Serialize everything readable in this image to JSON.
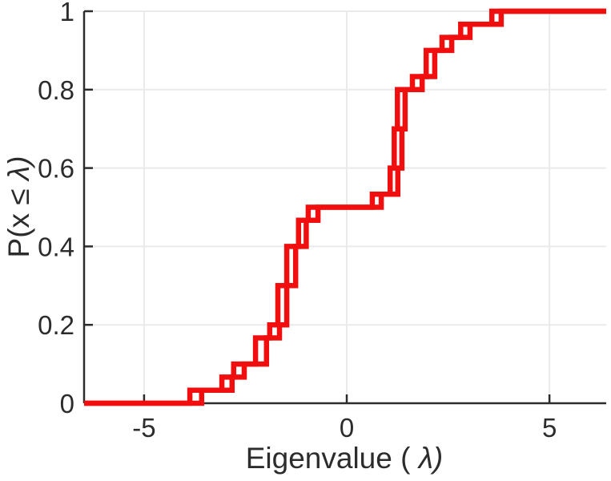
{
  "figure": {
    "background": "#ffffff",
    "kind": "MATLAB-style empirical CDF plot of eigenvalues"
  },
  "chart_data": {
    "type": "line",
    "subtype": "ecdf-stairs",
    "title": "",
    "xlabel_prefix": "Eigenvalue (",
    "xlabel_lambda": " λ)",
    "ylabel_prefix": "P(x ≤ ",
    "ylabel_lambda": "λ)",
    "xlim": [
      -6.48,
      6.4
    ],
    "ylim": [
      0,
      1
    ],
    "xticks": [
      -5,
      0,
      5
    ],
    "xtick_labels": [
      "-5",
      "0",
      "5"
    ],
    "yticks": [
      0,
      0.2,
      0.4,
      0.6,
      0.8,
      1
    ],
    "ytick_labels": [
      "0",
      "0.2",
      "0.4",
      "0.6",
      "0.8",
      "1"
    ],
    "grid": true,
    "legend": "none",
    "line_color": "#f10e0e",
    "axis_color": "#2c2c2c",
    "grid_color": "#eaeaea",
    "line_width": 6.5,
    "series": [
      {
        "name": "ecdf-curve-1",
        "n": 30,
        "eigenvalues": [
          -3.87,
          -3.08,
          -2.79,
          -2.25,
          -2.25,
          -1.9,
          -1.7,
          -1.7,
          -1.7,
          -1.48,
          -1.48,
          -1.48,
          -1.19,
          -1.19,
          -0.95,
          0.63,
          1.07,
          1.07,
          1.17,
          1.17,
          1.17,
          1.25,
          1.25,
          1.25,
          1.62,
          1.96,
          1.96,
          2.35,
          2.81,
          3.58
        ]
      },
      {
        "name": "ecdf-curve-2",
        "n": 30,
        "eigenvalues": [
          -3.58,
          -2.83,
          -2.53,
          -1.98,
          -1.98,
          -1.66,
          -1.48,
          -1.48,
          -1.48,
          -1.26,
          -1.26,
          -1.26,
          -1.0,
          -1.0,
          -0.71,
          0.85,
          1.26,
          1.26,
          1.36,
          1.36,
          1.36,
          1.44,
          1.44,
          1.44,
          1.86,
          2.17,
          2.17,
          2.59,
          3.04,
          3.81
        ]
      }
    ]
  }
}
